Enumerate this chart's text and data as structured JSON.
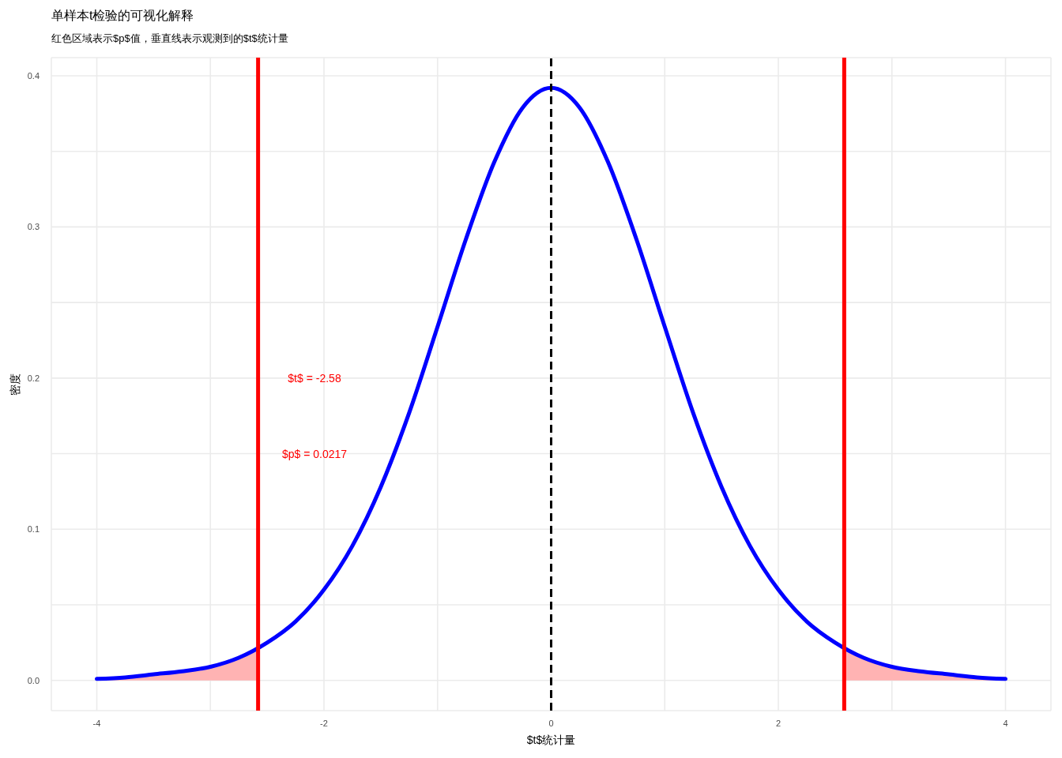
{
  "chart_data": {
    "type": "line",
    "title": "单样本t检验的可视化解释",
    "subtitle": "红色区域表示$p$值，垂直线表示观测到的$t$统计量",
    "xlabel": "$t$统计量",
    "ylabel": "密度",
    "series": [
      {
        "type": "area",
        "color": "#ffb3b3",
        "x": [
          -4,
          -3.75,
          -3.5,
          -3.25,
          -3,
          -2.75,
          -2.58
        ],
        "values": [
          0.001,
          0.002,
          0.004,
          0.006,
          0.009,
          0.015,
          0.021
        ]
      },
      {
        "type": "area",
        "color": "#ffb3b3",
        "x": [
          2.58,
          2.75,
          3,
          3.25,
          3.5,
          3.75,
          4
        ],
        "values": [
          0.021,
          0.015,
          0.009,
          0.006,
          0.004,
          0.002,
          0.001
        ]
      },
      {
        "color": "#0000ff",
        "x": [
          -4,
          -3.75,
          -3.5,
          -3.25,
          -3,
          -2.75,
          -2.5,
          -2.25,
          -2,
          -1.75,
          -1.5,
          -1.25,
          -1,
          -0.75,
          -0.5,
          -0.25,
          0,
          0.25,
          0.5,
          0.75,
          1,
          1.25,
          1.5,
          1.75,
          2,
          2.25,
          2.5,
          2.75,
          3,
          3.25,
          3.5,
          3.75,
          4
        ],
        "values": [
          0.001,
          0.002,
          0.004,
          0.006,
          0.009,
          0.015,
          0.025,
          0.039,
          0.06,
          0.089,
          0.128,
          0.177,
          0.234,
          0.292,
          0.343,
          0.379,
          0.392,
          0.379,
          0.343,
          0.292,
          0.234,
          0.177,
          0.128,
          0.089,
          0.06,
          0.039,
          0.025,
          0.015,
          0.009,
          0.006,
          0.004,
          0.002,
          0.001
        ]
      }
    ],
    "xlim": [
      -4.4,
      4.4
    ],
    "xticks": [
      -4,
      {
        "value": -3,
        "label": null
      },
      -2,
      {
        "value": -1,
        "label": null
      },
      0,
      {
        "value": 1,
        "label": null
      },
      2,
      {
        "value": 3,
        "label": null
      },
      4
    ],
    "ylim": [
      -0.02,
      0.412
    ],
    "yticks": [
      {
        "value": 0,
        "label": "0.0"
      },
      {
        "value": 0.05,
        "label": null
      },
      0.1,
      {
        "value": 0.15,
        "label": null
      },
      0.2,
      {
        "value": 0.25,
        "label": null
      },
      0.3,
      {
        "value": 0.35,
        "label": null
      },
      0.4
    ],
    "ref_lines": [
      {
        "axis": "x",
        "value": -2.58,
        "color": "#ff0000"
      },
      {
        "axis": "x",
        "value": 2.58,
        "color": "#ff0000"
      },
      {
        "axis": "x",
        "value": 0,
        "color": "#000000",
        "line_style": "dashed"
      }
    ],
    "annotations": [
      "$t$ = -2.58",
      "$p$ = 0.0217"
    ],
    "grid": true
  }
}
